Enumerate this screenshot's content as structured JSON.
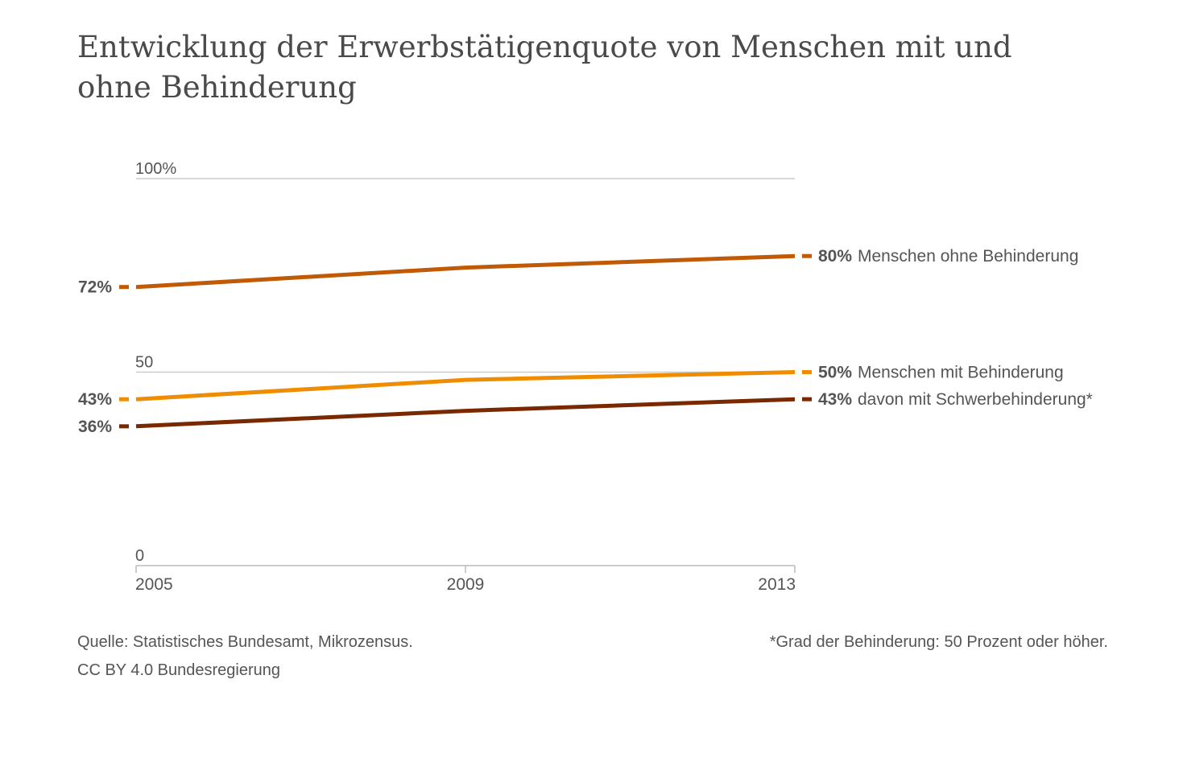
{
  "chart_data": {
    "type": "line",
    "title": "Entwicklung der Erwerbstätigenquote von Menschen mit und ohne Behinderung",
    "x": [
      "2005",
      "2009",
      "2013"
    ],
    "ylim": [
      0,
      100
    ],
    "y_ticks": [
      {
        "value": 100,
        "label": "100%"
      },
      {
        "value": 50,
        "label": "50"
      },
      {
        "value": 0,
        "label": "0"
      }
    ],
    "grid": true,
    "legend": "direct labels at line ends (right)",
    "series": [
      {
        "name": "Menschen ohne Behinderung",
        "values": [
          72,
          77,
          80
        ],
        "color": "#c05a05",
        "start_label": "72%",
        "end_label": "80%"
      },
      {
        "name": "Menschen mit Behinderung",
        "values": [
          43,
          48,
          50
        ],
        "color": "#f08c00",
        "start_label": "43%",
        "end_label": "50%"
      },
      {
        "name": "davon mit Schwerbehinderung*",
        "values": [
          36,
          40,
          43
        ],
        "color": "#7a2800",
        "start_label": "36%",
        "end_label": "43%"
      }
    ]
  },
  "source": {
    "line1": "Quelle: Statistisches Bundesamt, Mikrozensus.",
    "line2": "CC BY 4.0 Bundesregierung"
  },
  "footnote": "*Grad der Behinderung: 50 Prozent oder höher."
}
